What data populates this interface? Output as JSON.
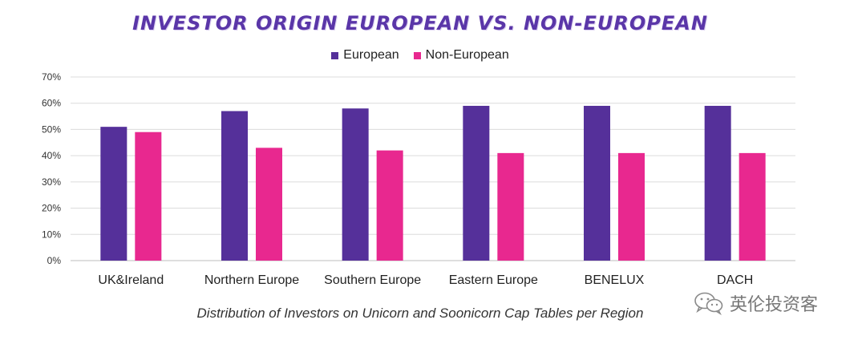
{
  "chart_data": {
    "type": "bar",
    "title": "INVESTOR ORIGIN EUROPEAN VS. NON-EUROPEAN",
    "caption": "Distribution of Investors on Unicorn and Soonicorn Cap Tables per Region",
    "categories": [
      "UK&Ireland",
      "Northern Europe",
      "Southern Europe",
      "Eastern Europe",
      "BENELUX",
      "DACH"
    ],
    "series": [
      {
        "name": "European",
        "color": "#55309a",
        "values": [
          51,
          57,
          58,
          59,
          59,
          59
        ]
      },
      {
        "name": "Non-European",
        "color": "#e8288f",
        "values": [
          49,
          43,
          42,
          41,
          41,
          41
        ]
      }
    ],
    "y_ticks": [
      "0%",
      "10%",
      "20%",
      "30%",
      "40%",
      "50%",
      "60%",
      "70%"
    ],
    "ylim": [
      0,
      70
    ],
    "y_unit": "%",
    "grid": true,
    "legend_position": "top-center"
  },
  "watermark": {
    "text": "英伦投资客",
    "icon": "wechat-icon"
  }
}
